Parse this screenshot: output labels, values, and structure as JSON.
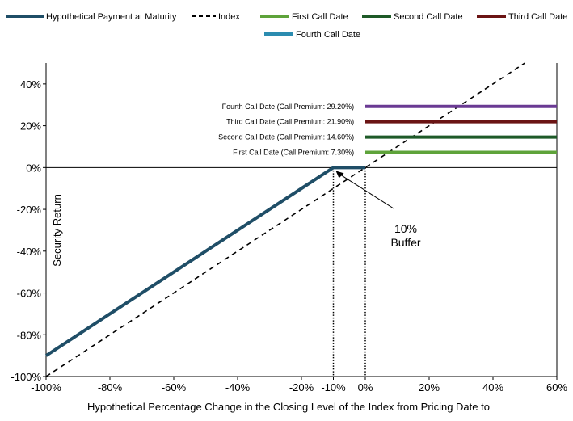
{
  "chart_data": {
    "type": "line",
    "xlabel": "Hypothetical Percentage Change in the Closing Level of the Index from Pricing Date to",
    "ylabel": "Security Return",
    "xlim": [
      -100,
      60
    ],
    "ylim": [
      -100,
      50
    ],
    "x_ticks": [
      {
        "value": -100,
        "label": "-100%"
      },
      {
        "value": -80,
        "label": "-80%"
      },
      {
        "value": -60,
        "label": "-60%"
      },
      {
        "value": -40,
        "label": "-40%"
      },
      {
        "value": -20,
        "label": "-20%"
      },
      {
        "value": -10,
        "label": "-10%"
      },
      {
        "value": 0,
        "label": "0%"
      },
      {
        "value": 20,
        "label": "20%"
      },
      {
        "value": 40,
        "label": "40%"
      },
      {
        "value": 60,
        "label": "60%"
      }
    ],
    "y_ticks": [
      {
        "value": 40,
        "label": "40%"
      },
      {
        "value": 20,
        "label": "20%"
      },
      {
        "value": 0,
        "label": "0%"
      },
      {
        "value": -20,
        "label": "-20%"
      },
      {
        "value": -40,
        "label": "-40%"
      },
      {
        "value": -60,
        "label": "-60%"
      },
      {
        "value": -80,
        "label": "-80%"
      },
      {
        "value": -100,
        "label": "-100%"
      }
    ],
    "legend_position": "top",
    "series": [
      {
        "name": "Hypothetical Payment at Maturity",
        "color": "#1f4e67",
        "style": "solid-thick",
        "points": [
          [
            -100,
            -90
          ],
          [
            -10,
            0
          ],
          [
            0,
            0
          ]
        ]
      },
      {
        "name": "Index",
        "color": "#000000",
        "style": "dashed",
        "points": [
          [
            -100,
            -100
          ],
          [
            50,
            50
          ]
        ]
      },
      {
        "name": "First Call Date",
        "color": "#5ea33a",
        "style": "solid",
        "points": [
          [
            0,
            7.3
          ],
          [
            60,
            7.3
          ]
        ]
      },
      {
        "name": "Second Call Date",
        "color": "#1e5a28",
        "style": "solid",
        "points": [
          [
            0,
            14.6
          ],
          [
            60,
            14.6
          ]
        ]
      },
      {
        "name": "Third Call Date",
        "color": "#6b1414",
        "style": "solid",
        "points": [
          [
            0,
            21.9
          ],
          [
            60,
            21.9
          ]
        ]
      },
      {
        "name": "Fourth Call Date",
        "color": "#2b8cb0",
        "style": "solid",
        "points": []
      }
    ],
    "call_lines": [
      {
        "label": "First Call Date (Call Premium: 7.30%)",
        "value": 7.3,
        "color": "#5ea33a"
      },
      {
        "label": "Second Call Date (Call Premium: 14.60%)",
        "value": 14.6,
        "color": "#1e5a28"
      },
      {
        "label": "Third  Call Date (Call Premium: 21.90%)",
        "value": 21.9,
        "color": "#6b1414"
      },
      {
        "label": "Fourth Call Date (Call Premium: 29.20%)",
        "value": 29.2,
        "color": "#6a3a93"
      }
    ],
    "buffer_annotation": {
      "line1": "10%",
      "line2": "Buffer"
    }
  }
}
